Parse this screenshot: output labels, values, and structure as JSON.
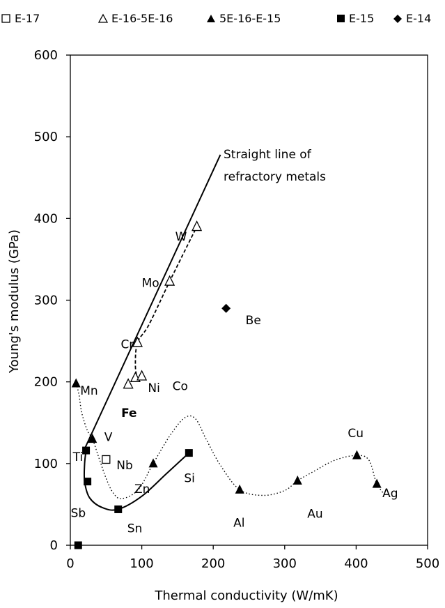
{
  "chart_data": {
    "type": "scatter",
    "xlabel": "Thermal conductivity (W/mK)",
    "ylabel": "Young's modulus (GPa)",
    "xlim": [
      0,
      500
    ],
    "ylim": [
      0,
      600
    ],
    "xticks": [
      0,
      100,
      200,
      300,
      400,
      500
    ],
    "yticks": [
      0,
      100,
      200,
      300,
      400,
      500,
      600
    ],
    "grid": false,
    "legend_position": "top",
    "series": [
      {
        "name": "E-17",
        "marker": "open-square",
        "points": [
          {
            "x": 50,
            "y": 105,
            "label": "Nb"
          }
        ]
      },
      {
        "name": "E-16-5E-16",
        "marker": "open-triangle",
        "points": [
          {
            "x": 177,
            "y": 390,
            "label": "W"
          },
          {
            "x": 139,
            "y": 323,
            "label": "Mo"
          },
          {
            "x": 94,
            "y": 248,
            "label": "Cr"
          },
          {
            "x": 91,
            "y": 205,
            "label": "Ni"
          },
          {
            "x": 100,
            "y": 207,
            "label": "Co"
          },
          {
            "x": 81,
            "y": 197,
            "label": "Fe"
          }
        ]
      },
      {
        "name": "5E-16-E-15",
        "marker": "filled-triangle",
        "points": [
          {
            "x": 8,
            "y": 198,
            "label": "Mn"
          },
          {
            "x": 31,
            "y": 130,
            "label": "V"
          },
          {
            "x": 116,
            "y": 100,
            "label": "Zn"
          },
          {
            "x": 237,
            "y": 68,
            "label": "Al"
          },
          {
            "x": 318,
            "y": 79,
            "label": "Au"
          },
          {
            "x": 401,
            "y": 110,
            "label": "Cu"
          },
          {
            "x": 429,
            "y": 75,
            "label": "Ag"
          }
        ]
      },
      {
        "name": "E-15",
        "marker": "filled-square",
        "points": [
          {
            "x": 22,
            "y": 116,
            "label": "Ti"
          },
          {
            "x": 24,
            "y": 78,
            "label": "Sb"
          },
          {
            "x": 67,
            "y": 44,
            "label": "Sn"
          },
          {
            "x": 166,
            "y": 113,
            "label": "Si"
          },
          {
            "x": 11,
            "y": 0,
            "label": ""
          }
        ]
      },
      {
        "name": "E-14",
        "marker": "filled-diamond",
        "points": [
          {
            "x": 218,
            "y": 290,
            "label": "Be"
          }
        ]
      }
    ],
    "annotations": [
      {
        "text": "Straight line of",
        "x": 218,
        "y": 477
      },
      {
        "text": "refractory metals",
        "x": 218,
        "y": 448
      }
    ],
    "straight_line": [
      {
        "x": 20,
        "y": 118
      },
      {
        "x": 210,
        "y": 478
      }
    ],
    "solid_curve": [
      {
        "x": 22,
        "y": 116
      },
      {
        "x": 20,
        "y": 100
      },
      {
        "x": 20,
        "y": 78
      },
      {
        "x": 27,
        "y": 58
      },
      {
        "x": 45,
        "y": 46
      },
      {
        "x": 67,
        "y": 44
      },
      {
        "x": 100,
        "y": 60
      },
      {
        "x": 135,
        "y": 88
      },
      {
        "x": 166,
        "y": 113
      }
    ],
    "dashed_curve": [
      {
        "x": 94,
        "y": 202
      },
      {
        "x": 91,
        "y": 220
      },
      {
        "x": 94,
        "y": 248
      },
      {
        "x": 110,
        "y": 270
      },
      {
        "x": 139,
        "y": 323
      },
      {
        "x": 177,
        "y": 390
      }
    ],
    "dotted_curve": [
      {
        "x": 8,
        "y": 198
      },
      {
        "x": 12,
        "y": 185
      },
      {
        "x": 16,
        "y": 162
      },
      {
        "x": 24,
        "y": 140
      },
      {
        "x": 31,
        "y": 130
      },
      {
        "x": 40,
        "y": 107
      },
      {
        "x": 50,
        "y": 82
      },
      {
        "x": 60,
        "y": 64
      },
      {
        "x": 72,
        "y": 57
      },
      {
        "x": 95,
        "y": 68
      },
      {
        "x": 116,
        "y": 100
      },
      {
        "x": 140,
        "y": 135
      },
      {
        "x": 160,
        "y": 156
      },
      {
        "x": 175,
        "y": 155
      },
      {
        "x": 190,
        "y": 130
      },
      {
        "x": 210,
        "y": 98
      },
      {
        "x": 237,
        "y": 68
      },
      {
        "x": 270,
        "y": 61
      },
      {
        "x": 300,
        "y": 67
      },
      {
        "x": 318,
        "y": 79
      },
      {
        "x": 340,
        "y": 90
      },
      {
        "x": 370,
        "y": 104
      },
      {
        "x": 401,
        "y": 110
      },
      {
        "x": 418,
        "y": 104
      },
      {
        "x": 429,
        "y": 75
      },
      {
        "x": 442,
        "y": 60
      }
    ]
  }
}
